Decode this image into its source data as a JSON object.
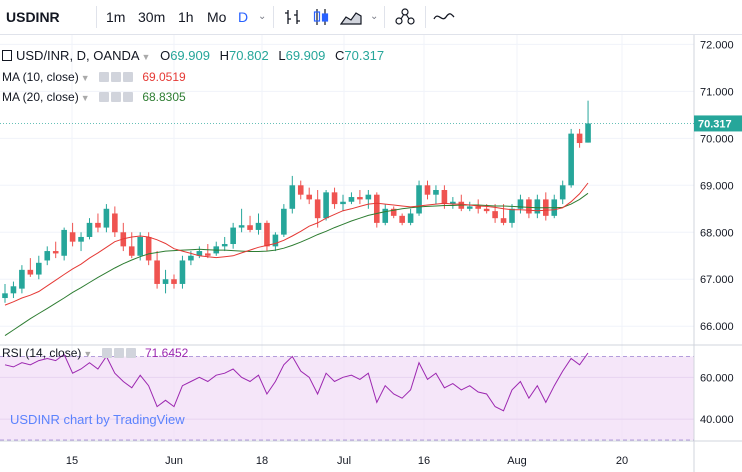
{
  "toolbar": {
    "symbol": "USDINR",
    "intervals": [
      "1m",
      "30m",
      "1h",
      "Mo",
      "D"
    ],
    "active_interval": "D"
  },
  "legend": {
    "title": "USD/INR, D, OANDA",
    "o_label": "O",
    "o": "69.909",
    "h_label": "H",
    "h": "70.802",
    "l_label": "L",
    "l": "69.909",
    "c_label": "C",
    "c": "70.317",
    "ma10_label": "MA (10, close)",
    "ma10_value": "69.0519",
    "ma20_label": "MA (20, close)",
    "ma20_value": "68.8305",
    "rsi_label": "RSI (14, close)",
    "rsi_value": "71.6452"
  },
  "watermark": "USDINR chart by TradingView",
  "last_price_label": "70.317",
  "colors": {
    "up": "#26a69a",
    "down": "#ef5350",
    "ma10": "#e53935",
    "ma20": "#2e7d32",
    "rsi_line": "#9c27b0",
    "rsi_band": "#f1dcf7",
    "accent": "#2962ff"
  },
  "chart_data": {
    "type": "candlestick",
    "price_axis": {
      "ylim": [
        65.6,
        72.2
      ],
      "ticks": [
        66.0,
        67.0,
        68.0,
        69.0,
        70.0,
        71.0,
        72.0
      ],
      "tick_labels": [
        "66.000",
        "67.000",
        "68.000",
        "69.000",
        "70.000",
        "71.000",
        "72.000"
      ]
    },
    "rsi_axis": {
      "ylim": [
        30,
        75
      ],
      "ticks": [
        40,
        60
      ],
      "tick_labels": [
        "40.000",
        "60.000"
      ],
      "band": [
        30,
        70
      ]
    },
    "x_labels": [
      "15",
      "Jun",
      "18",
      "Jul",
      "16",
      "Aug",
      "20"
    ],
    "candles": [
      [
        66.6,
        66.9,
        66.5,
        66.7
      ],
      [
        66.7,
        66.95,
        66.6,
        66.85
      ],
      [
        66.8,
        67.3,
        66.7,
        67.2
      ],
      [
        67.2,
        67.45,
        67.05,
        67.1
      ],
      [
        67.1,
        67.5,
        67.0,
        67.35
      ],
      [
        67.4,
        67.7,
        67.3,
        67.6
      ],
      [
        67.6,
        67.8,
        67.45,
        67.55
      ],
      [
        67.5,
        68.1,
        67.4,
        68.05
      ],
      [
        68.0,
        68.2,
        67.7,
        67.8
      ],
      [
        67.8,
        68.0,
        67.6,
        67.9
      ],
      [
        67.9,
        68.3,
        67.85,
        68.2
      ],
      [
        68.2,
        68.4,
        68.0,
        68.1
      ],
      [
        68.1,
        68.6,
        68.0,
        68.5
      ],
      [
        68.4,
        68.55,
        67.9,
        68.0
      ],
      [
        68.0,
        68.2,
        67.6,
        67.7
      ],
      [
        67.7,
        68.0,
        67.45,
        67.5
      ],
      [
        67.5,
        68.0,
        67.4,
        67.9
      ],
      [
        67.9,
        68.0,
        67.3,
        67.4
      ],
      [
        67.4,
        67.6,
        66.8,
        66.9
      ],
      [
        66.9,
        67.2,
        66.7,
        67.0
      ],
      [
        67.0,
        67.1,
        66.8,
        66.9
      ],
      [
        66.9,
        67.5,
        66.8,
        67.4
      ],
      [
        67.4,
        67.6,
        67.3,
        67.5
      ],
      [
        67.5,
        67.7,
        67.45,
        67.6
      ],
      [
        67.55,
        67.75,
        67.45,
        67.5
      ],
      [
        67.55,
        67.8,
        67.5,
        67.7
      ],
      [
        67.7,
        67.9,
        67.6,
        67.75
      ],
      [
        67.75,
        68.2,
        67.65,
        68.1
      ],
      [
        68.1,
        68.5,
        68.0,
        68.15
      ],
      [
        68.15,
        68.35,
        68.0,
        68.05
      ],
      [
        68.05,
        68.4,
        67.95,
        68.2
      ],
      [
        68.2,
        68.25,
        67.6,
        67.7
      ],
      [
        67.7,
        68.0,
        67.6,
        67.95
      ],
      [
        67.95,
        68.6,
        67.9,
        68.5
      ],
      [
        68.5,
        69.2,
        68.4,
        69.0
      ],
      [
        69.0,
        69.1,
        68.7,
        68.8
      ],
      [
        68.8,
        68.95,
        68.6,
        68.7
      ],
      [
        68.7,
        68.9,
        68.1,
        68.3
      ],
      [
        68.3,
        68.9,
        68.25,
        68.85
      ],
      [
        68.85,
        68.95,
        68.5,
        68.6
      ],
      [
        68.6,
        68.8,
        68.45,
        68.65
      ],
      [
        68.65,
        68.85,
        68.6,
        68.75
      ],
      [
        68.75,
        68.9,
        68.6,
        68.7
      ],
      [
        68.7,
        68.9,
        68.5,
        68.8
      ],
      [
        68.8,
        68.85,
        68.1,
        68.2
      ],
      [
        68.2,
        68.6,
        68.15,
        68.5
      ],
      [
        68.5,
        68.55,
        68.3,
        68.35
      ],
      [
        68.35,
        68.4,
        68.15,
        68.2
      ],
      [
        68.2,
        68.5,
        68.15,
        68.4
      ],
      [
        68.4,
        69.1,
        68.35,
        69.0
      ],
      [
        69.0,
        69.1,
        68.7,
        68.8
      ],
      [
        68.8,
        69.0,
        68.6,
        68.9
      ],
      [
        68.9,
        69.0,
        68.5,
        68.6
      ],
      [
        68.6,
        68.75,
        68.5,
        68.65
      ],
      [
        68.65,
        68.8,
        68.45,
        68.5
      ],
      [
        68.5,
        68.65,
        68.45,
        68.55
      ],
      [
        68.55,
        68.7,
        68.4,
        68.5
      ],
      [
        68.5,
        68.6,
        68.4,
        68.45
      ],
      [
        68.45,
        68.6,
        68.2,
        68.3
      ],
      [
        68.3,
        68.6,
        68.15,
        68.2
      ],
      [
        68.2,
        68.6,
        68.1,
        68.5
      ],
      [
        68.5,
        68.8,
        68.4,
        68.7
      ],
      [
        68.7,
        68.75,
        68.3,
        68.4
      ],
      [
        68.4,
        68.8,
        68.3,
        68.7
      ],
      [
        68.7,
        68.85,
        68.25,
        68.35
      ],
      [
        68.35,
        68.8,
        68.3,
        68.7
      ],
      [
        68.7,
        69.1,
        68.6,
        69.0
      ],
      [
        69.0,
        70.2,
        68.95,
        70.1
      ],
      [
        70.1,
        70.2,
        69.8,
        69.9
      ],
      [
        69.909,
        70.802,
        69.909,
        70.317
      ]
    ],
    "ma10": [
      66.45,
      66.52,
      66.6,
      66.66,
      66.74,
      66.86,
      66.98,
      67.1,
      67.22,
      67.32,
      67.45,
      67.56,
      67.68,
      67.8,
      67.86,
      67.9,
      67.92,
      67.9,
      67.84,
      67.76,
      67.65,
      67.6,
      67.55,
      67.5,
      67.48,
      67.46,
      67.48,
      67.5,
      67.56,
      67.62,
      67.68,
      67.72,
      67.76,
      67.83,
      67.92,
      68.02,
      68.13,
      68.2,
      68.3,
      68.38,
      68.46,
      68.5,
      68.55,
      68.6,
      68.62,
      68.6,
      68.58,
      68.56,
      68.54,
      68.56,
      68.58,
      68.6,
      68.62,
      68.6,
      68.6,
      68.58,
      68.56,
      68.55,
      68.53,
      68.5,
      68.48,
      68.48,
      68.47,
      68.46,
      68.47,
      68.48,
      68.52,
      68.65,
      68.82,
      69.05
    ],
    "ma20": [
      65.8,
      65.92,
      66.04,
      66.16,
      66.27,
      66.38,
      66.49,
      66.6,
      66.72,
      66.82,
      66.93,
      67.04,
      67.14,
      67.24,
      67.33,
      67.41,
      67.48,
      67.54,
      67.57,
      67.6,
      67.61,
      67.62,
      67.63,
      67.64,
      67.63,
      67.62,
      67.62,
      67.61,
      67.6,
      67.59,
      67.59,
      67.6,
      67.62,
      67.66,
      67.72,
      67.79,
      67.87,
      67.95,
      68.02,
      68.1,
      68.17,
      68.24,
      68.3,
      68.36,
      68.4,
      68.44,
      68.47,
      68.5,
      68.52,
      68.54,
      68.55,
      68.56,
      68.57,
      68.57,
      68.58,
      68.58,
      68.58,
      68.57,
      68.56,
      68.56,
      68.55,
      68.54,
      68.53,
      68.52,
      68.52,
      68.52,
      68.53,
      68.6,
      68.7,
      68.83
    ],
    "rsi": [
      66,
      65,
      67,
      66,
      68,
      69,
      68,
      71,
      62,
      64,
      67,
      64,
      70,
      62,
      58,
      55,
      61,
      56,
      46,
      49,
      46,
      56,
      58,
      60,
      58,
      61,
      62,
      64,
      60,
      58,
      61,
      52,
      58,
      66,
      70,
      63,
      60,
      52,
      62,
      58,
      60,
      61,
      59,
      62,
      48,
      56,
      52,
      50,
      54,
      67,
      59,
      62,
      55,
      57,
      54,
      56,
      53,
      52,
      46,
      44,
      54,
      58,
      50,
      56,
      48,
      56,
      63,
      69,
      66,
      71.6452
    ]
  }
}
